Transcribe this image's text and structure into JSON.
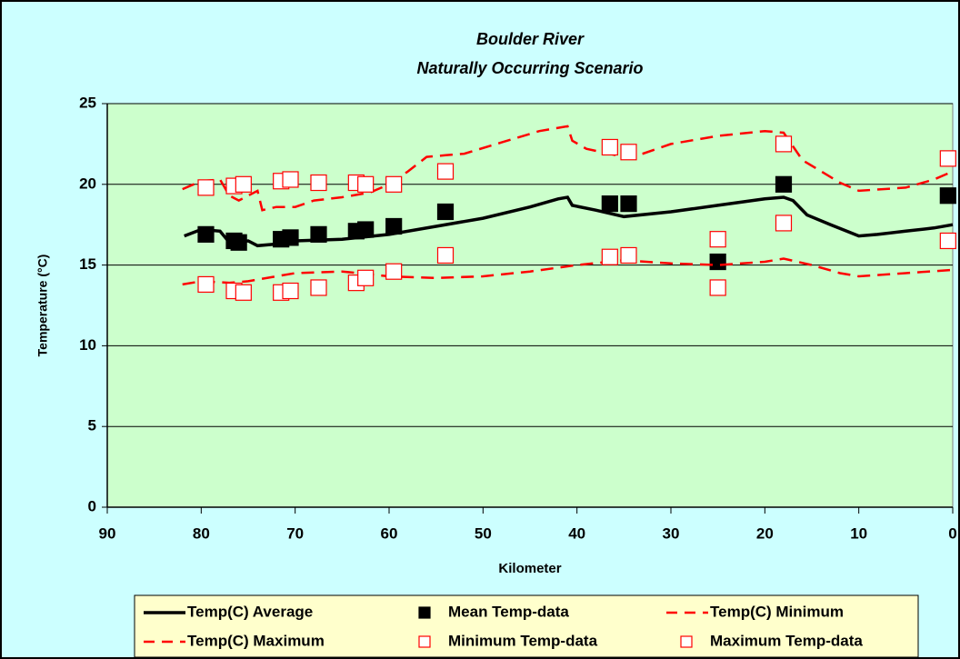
{
  "chart_data": {
    "type": "line",
    "title": "Boulder River",
    "subtitle": "Naturally Occurring Scenario",
    "x_label": "Kilometer",
    "y_label": "Temperature (°C)",
    "xlim": [
      90,
      0
    ],
    "xticks": [
      90,
      80,
      70,
      60,
      50,
      40,
      30,
      20,
      10,
      0
    ],
    "ylim": [
      0,
      25
    ],
    "yticks": [
      0,
      5,
      10,
      15,
      20,
      25
    ],
    "grid": true,
    "series": [
      {
        "name": "Temp(C) Average",
        "style": "solid",
        "color": "#000000",
        "x": [
          81.8,
          80,
          78,
          77,
          75,
          74,
          72,
          70,
          65,
          60,
          55,
          50,
          45,
          42,
          41,
          40.5,
          38,
          35,
          30,
          25,
          20,
          18,
          17,
          15.5,
          13,
          10,
          8,
          5,
          2,
          0
        ],
        "values": [
          16.8,
          17.2,
          17.1,
          16.4,
          16.5,
          16.2,
          16.3,
          16.5,
          16.6,
          16.9,
          17.4,
          17.9,
          18.6,
          19.1,
          19.2,
          18.7,
          18.4,
          18.0,
          18.3,
          18.7,
          19.1,
          19.2,
          19.0,
          18.1,
          17.5,
          16.8,
          16.9,
          17.1,
          17.3,
          17.5
        ]
      },
      {
        "name": "Mean Temp-data",
        "style": "filled-square",
        "color": "#000000",
        "x": [
          79.5,
          76.5,
          76,
          71.5,
          70.5,
          67.5,
          63.5,
          62.5,
          59.5,
          54,
          36.5,
          34.5,
          25,
          18,
          0.5
        ],
        "values": [
          16.9,
          16.5,
          16.4,
          16.6,
          16.7,
          16.9,
          17.1,
          17.2,
          17.4,
          18.3,
          18.8,
          18.8,
          15.2,
          20.0,
          19.3
        ]
      },
      {
        "name": "Temp(C) Minimum",
        "style": "dashed",
        "color": "#ff0000",
        "x": [
          82,
          80,
          77,
          75,
          72,
          70,
          65,
          60,
          55,
          50,
          45,
          40,
          35,
          30,
          25,
          20,
          18,
          15,
          12,
          10,
          5,
          0
        ],
        "values": [
          13.8,
          14.0,
          13.9,
          14.0,
          14.3,
          14.5,
          14.6,
          14.3,
          14.2,
          14.3,
          14.6,
          15.0,
          15.3,
          15.1,
          15.0,
          15.2,
          15.4,
          15.0,
          14.5,
          14.3,
          14.5,
          14.7
        ]
      },
      {
        "name": "Temp(C) Maximum",
        "style": "dashed",
        "color": "#ff0000",
        "x": [
          82,
          80,
          78,
          77,
          76,
          75,
          74,
          73.5,
          72,
          70,
          68,
          65,
          62,
          60,
          58,
          56,
          54,
          52,
          48,
          44,
          41,
          40.5,
          39,
          35,
          33,
          30,
          25,
          20,
          18,
          16,
          12,
          10,
          5,
          2,
          0
        ],
        "values": [
          19.7,
          20.2,
          20.3,
          19.3,
          19.0,
          19.3,
          19.6,
          18.4,
          18.6,
          18.6,
          19.0,
          19.2,
          19.5,
          20.0,
          20.8,
          21.7,
          21.8,
          21.9,
          22.6,
          23.3,
          23.6,
          22.7,
          22.2,
          21.7,
          21.9,
          22.5,
          23.0,
          23.3,
          23.2,
          21.5,
          20.1,
          19.6,
          19.8,
          20.3,
          20.8
        ]
      },
      {
        "name": "Minimum Temp-data",
        "style": "open-square",
        "color": "#ff0000",
        "x": [
          79.5,
          76.5,
          75.5,
          71.5,
          70.5,
          67.5,
          63.5,
          62.5,
          59.5,
          54,
          36.5,
          34.5,
          25,
          18,
          0.5
        ],
        "values": [
          13.8,
          13.4,
          13.3,
          13.3,
          13.4,
          13.6,
          13.9,
          14.2,
          14.6,
          15.6,
          15.5,
          15.6,
          13.6,
          17.6,
          16.5
        ]
      },
      {
        "name": "Maximum Temp-data",
        "style": "open-square",
        "color": "#ff0000",
        "x": [
          79.5,
          76.5,
          75.5,
          71.5,
          70.5,
          67.5,
          63.5,
          62.5,
          59.5,
          54,
          36.5,
          34.5,
          25,
          18,
          0.5
        ],
        "values": [
          19.8,
          19.9,
          20.0,
          20.2,
          20.3,
          20.1,
          20.1,
          20.0,
          20.0,
          20.8,
          22.3,
          22.0,
          16.6,
          22.5,
          21.6
        ]
      }
    ]
  }
}
